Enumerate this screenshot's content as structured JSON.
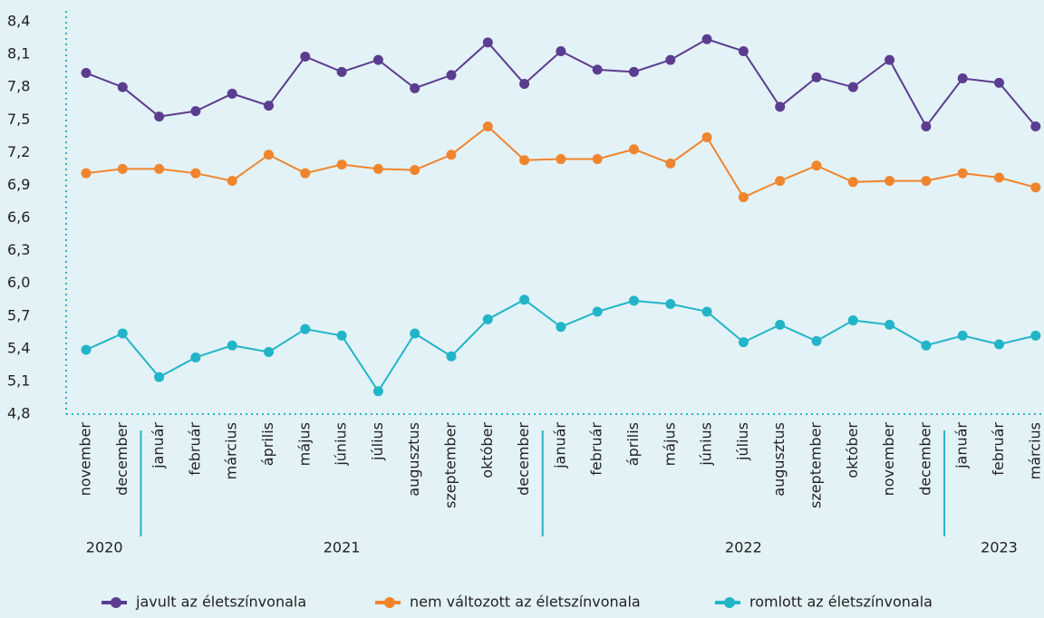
{
  "chart_data": {
    "type": "line",
    "groups": [
      {
        "year": "2020",
        "categories": [
          "november",
          "december"
        ]
      },
      {
        "year": "2021",
        "categories": [
          "január",
          "február",
          "március",
          "április",
          "május",
          "június",
          "július",
          "augusztus",
          "szeptember",
          "október",
          "december"
        ]
      },
      {
        "year": "2022",
        "categories": [
          "január",
          "február",
          "április",
          "május",
          "június",
          "július",
          "augusztus",
          "szeptember",
          "október",
          "november",
          "december"
        ]
      },
      {
        "year": "2023",
        "categories": [
          "január",
          "február",
          "március"
        ]
      }
    ],
    "series": [
      {
        "name": "javult az életszínvonala",
        "color": "#5b3d8f",
        "values": [
          7.93,
          7.8,
          7.53,
          7.58,
          7.74,
          7.63,
          8.08,
          7.94,
          8.05,
          7.79,
          7.91,
          8.21,
          7.83,
          8.13,
          7.96,
          7.94,
          8.05,
          8.24,
          8.13,
          7.62,
          7.89,
          7.8,
          8.05,
          7.44,
          7.88,
          7.84,
          7.44
        ]
      },
      {
        "name": "nem változott az életszínvonala",
        "color": "#f0852d",
        "values": [
          7.01,
          7.05,
          7.05,
          7.01,
          6.94,
          7.18,
          7.01,
          7.09,
          7.05,
          7.04,
          7.18,
          7.44,
          7.13,
          7.14,
          7.14,
          7.23,
          7.1,
          7.34,
          6.79,
          6.94,
          7.08,
          6.93,
          6.94,
          6.94,
          7.01,
          6.97,
          6.88
        ]
      },
      {
        "name": "romlott az életszínvonala",
        "color": "#22b5c8",
        "values": [
          5.39,
          5.54,
          5.14,
          5.32,
          5.43,
          5.37,
          5.58,
          5.52,
          5.01,
          5.54,
          5.33,
          5.67,
          5.85,
          5.6,
          5.74,
          5.84,
          5.81,
          5.74,
          5.46,
          5.62,
          5.47,
          5.66,
          5.62,
          5.43,
          5.52,
          5.44,
          5.52
        ]
      }
    ],
    "ylim": [
      4.8,
      8.4
    ],
    "yticks": [
      {
        "value": 4.8,
        "label": "4,8"
      },
      {
        "value": 5.1,
        "label": "5,1"
      },
      {
        "value": 5.4,
        "label": "5,4"
      },
      {
        "value": 5.7,
        "label": "5,7"
      },
      {
        "value": 6.0,
        "label": "6,0"
      },
      {
        "value": 6.3,
        "label": "6,3"
      },
      {
        "value": 6.6,
        "label": "6,6"
      },
      {
        "value": 6.9,
        "label": "6,9"
      },
      {
        "value": 7.2,
        "label": "7,2"
      },
      {
        "value": 7.5,
        "label": "7,5"
      },
      {
        "value": 7.8,
        "label": "7,8"
      },
      {
        "value": 8.1,
        "label": "8,1"
      },
      {
        "value": 8.4,
        "label": "8,4"
      }
    ],
    "axis_color": "#22b5c8"
  }
}
